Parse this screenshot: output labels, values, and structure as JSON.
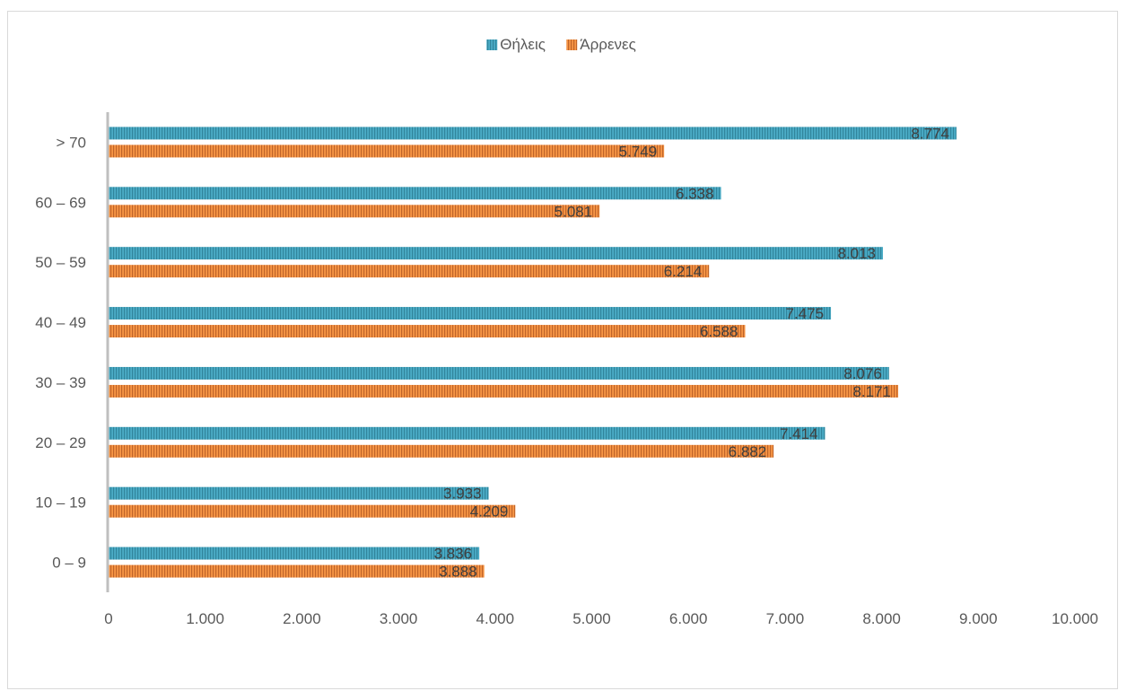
{
  "chart_data": {
    "type": "bar",
    "orientation": "horizontal",
    "categories": [
      "0 – 9",
      "10 – 19",
      "20 – 29",
      "30 – 39",
      "40 – 49",
      "50 – 59",
      "60 – 69",
      "> 70"
    ],
    "series": [
      {
        "name": "Θήλεις",
        "values": [
          3836,
          3933,
          7414,
          8076,
          7475,
          8013,
          6338,
          8774
        ],
        "labels": [
          "3.836",
          "3.933",
          "7.414",
          "8.076",
          "7.475",
          "8.013",
          "6.338",
          "8.774"
        ],
        "color": "#4bacc6"
      },
      {
        "name": "Άρρενες",
        "values": [
          3888,
          4209,
          6882,
          8171,
          6588,
          6214,
          5081,
          5749
        ],
        "labels": [
          "3.888",
          "4.209",
          "6.882",
          "8.171",
          "6.588",
          "6.214",
          "5.081",
          "5.749"
        ],
        "color": "#f79646"
      }
    ],
    "xlim": [
      0,
      10000
    ],
    "xticks": [
      0,
      1000,
      2000,
      3000,
      4000,
      5000,
      6000,
      7000,
      8000,
      9000,
      10000
    ],
    "xtick_labels": [
      "0",
      "1.000",
      "2.000",
      "3.000",
      "4.000",
      "5.000",
      "6.000",
      "7.000",
      "8.000",
      "9.000",
      "10.000"
    ],
    "legend_position": "top",
    "grid": false,
    "title": "",
    "xlabel": "",
    "ylabel": ""
  }
}
